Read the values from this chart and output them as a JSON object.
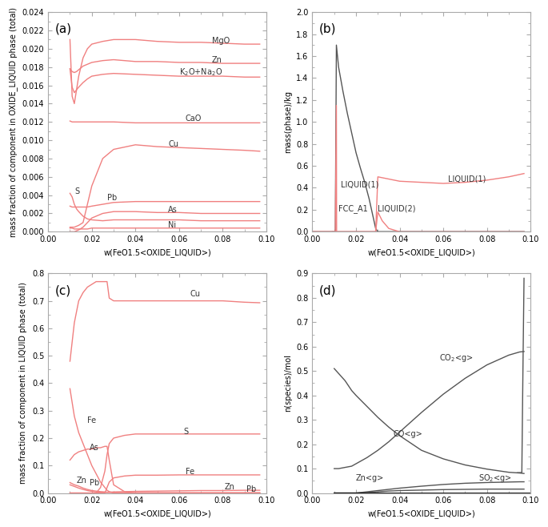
{
  "fig_size": [
    6.85,
    6.58
  ],
  "dpi": 100,
  "color_pink": "#F08080",
  "color_dark": "#555555",
  "xlabel": "w(FeO1.5<OXIDE_LIQUID>)",
  "panel_labels": [
    "(a)",
    "(b)",
    "(c)",
    "(d)"
  ],
  "ax_a": {
    "ylabel": "mass fraction of component in OXIDE_LIQUID phase (total)",
    "ylim": [
      0.0,
      0.024
    ],
    "yticks": [
      0.0,
      0.002,
      0.004,
      0.006,
      0.008,
      0.01,
      0.012,
      0.014,
      0.016,
      0.018,
      0.02,
      0.022,
      0.024
    ],
    "xlim": [
      0,
      0.1
    ]
  },
  "ax_b": {
    "ylabel": "mass(phase)/kg",
    "ylim": [
      0,
      2.0
    ],
    "yticks": [
      0,
      0.2,
      0.4,
      0.6,
      0.8,
      1.0,
      1.2,
      1.4,
      1.6,
      1.8,
      2.0
    ],
    "xlim": [
      0,
      0.1
    ]
  },
  "ax_c": {
    "ylabel": "mass fraction of component in LIQUID phase (total)",
    "ylim": [
      0,
      0.8
    ],
    "yticks": [
      0.0,
      0.1,
      0.2,
      0.3,
      0.4,
      0.5,
      0.6,
      0.7,
      0.8
    ],
    "xlim": [
      0,
      0.1
    ]
  },
  "ax_d": {
    "ylabel": "n(species)/mol",
    "ylim": [
      0,
      0.9
    ],
    "yticks": [
      0.0,
      0.1,
      0.2,
      0.3,
      0.4,
      0.5,
      0.6,
      0.7,
      0.8,
      0.9
    ],
    "xlim": [
      0,
      0.1
    ]
  }
}
